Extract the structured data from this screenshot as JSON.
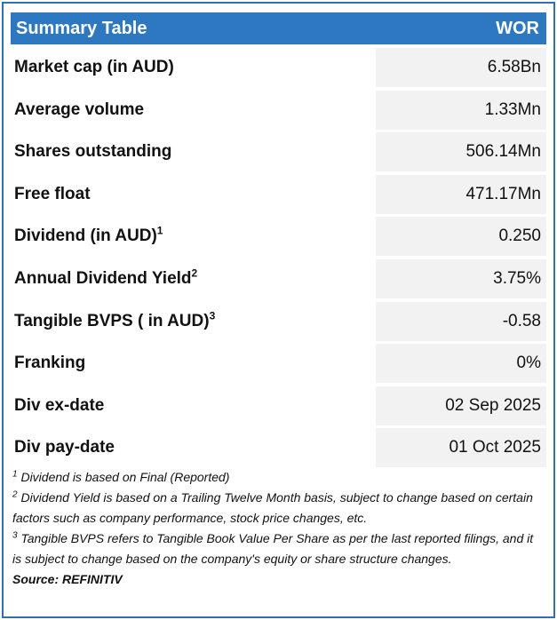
{
  "header": {
    "title": "Summary Table",
    "ticker": "WOR"
  },
  "rows": [
    {
      "label": "Market cap (in AUD)",
      "value": "6.58Bn"
    },
    {
      "label": "Average volume",
      "value": "1.33Mn"
    },
    {
      "label": "Shares outstanding",
      "value": "506.14Mn"
    },
    {
      "label": "Free float",
      "value": "471.17Mn"
    },
    {
      "label": "Dividend (in AUD)",
      "note": "1",
      "value": "0.250"
    },
    {
      "label": "Annual Dividend Yield",
      "note": "2",
      "value": "3.75%"
    },
    {
      "label": "Tangible BVPS ( in AUD)",
      "note": "3",
      "value": "-0.58"
    },
    {
      "label": "Franking",
      "value": "0%"
    },
    {
      "label": "Div ex-date",
      "value": "02 Sep 2025"
    },
    {
      "label": "Div pay-date",
      "value": "01 Oct 2025"
    }
  ],
  "footnotes": [
    {
      "mark": "1",
      "text": "Dividend is based on Final (Reported)"
    },
    {
      "mark": "2",
      "text": "Dividend Yield is based on a Trailing Twelve Month basis, subject to change based on certain factors such as company performance, stock price changes, etc."
    },
    {
      "mark": "3",
      "text": "Tangible BVPS refers to Tangible Book Value Per Share as per the last reported filings, and it is subject to change based on the company's equity or share structure changes."
    }
  ],
  "source": "Source: REFINITIV"
}
